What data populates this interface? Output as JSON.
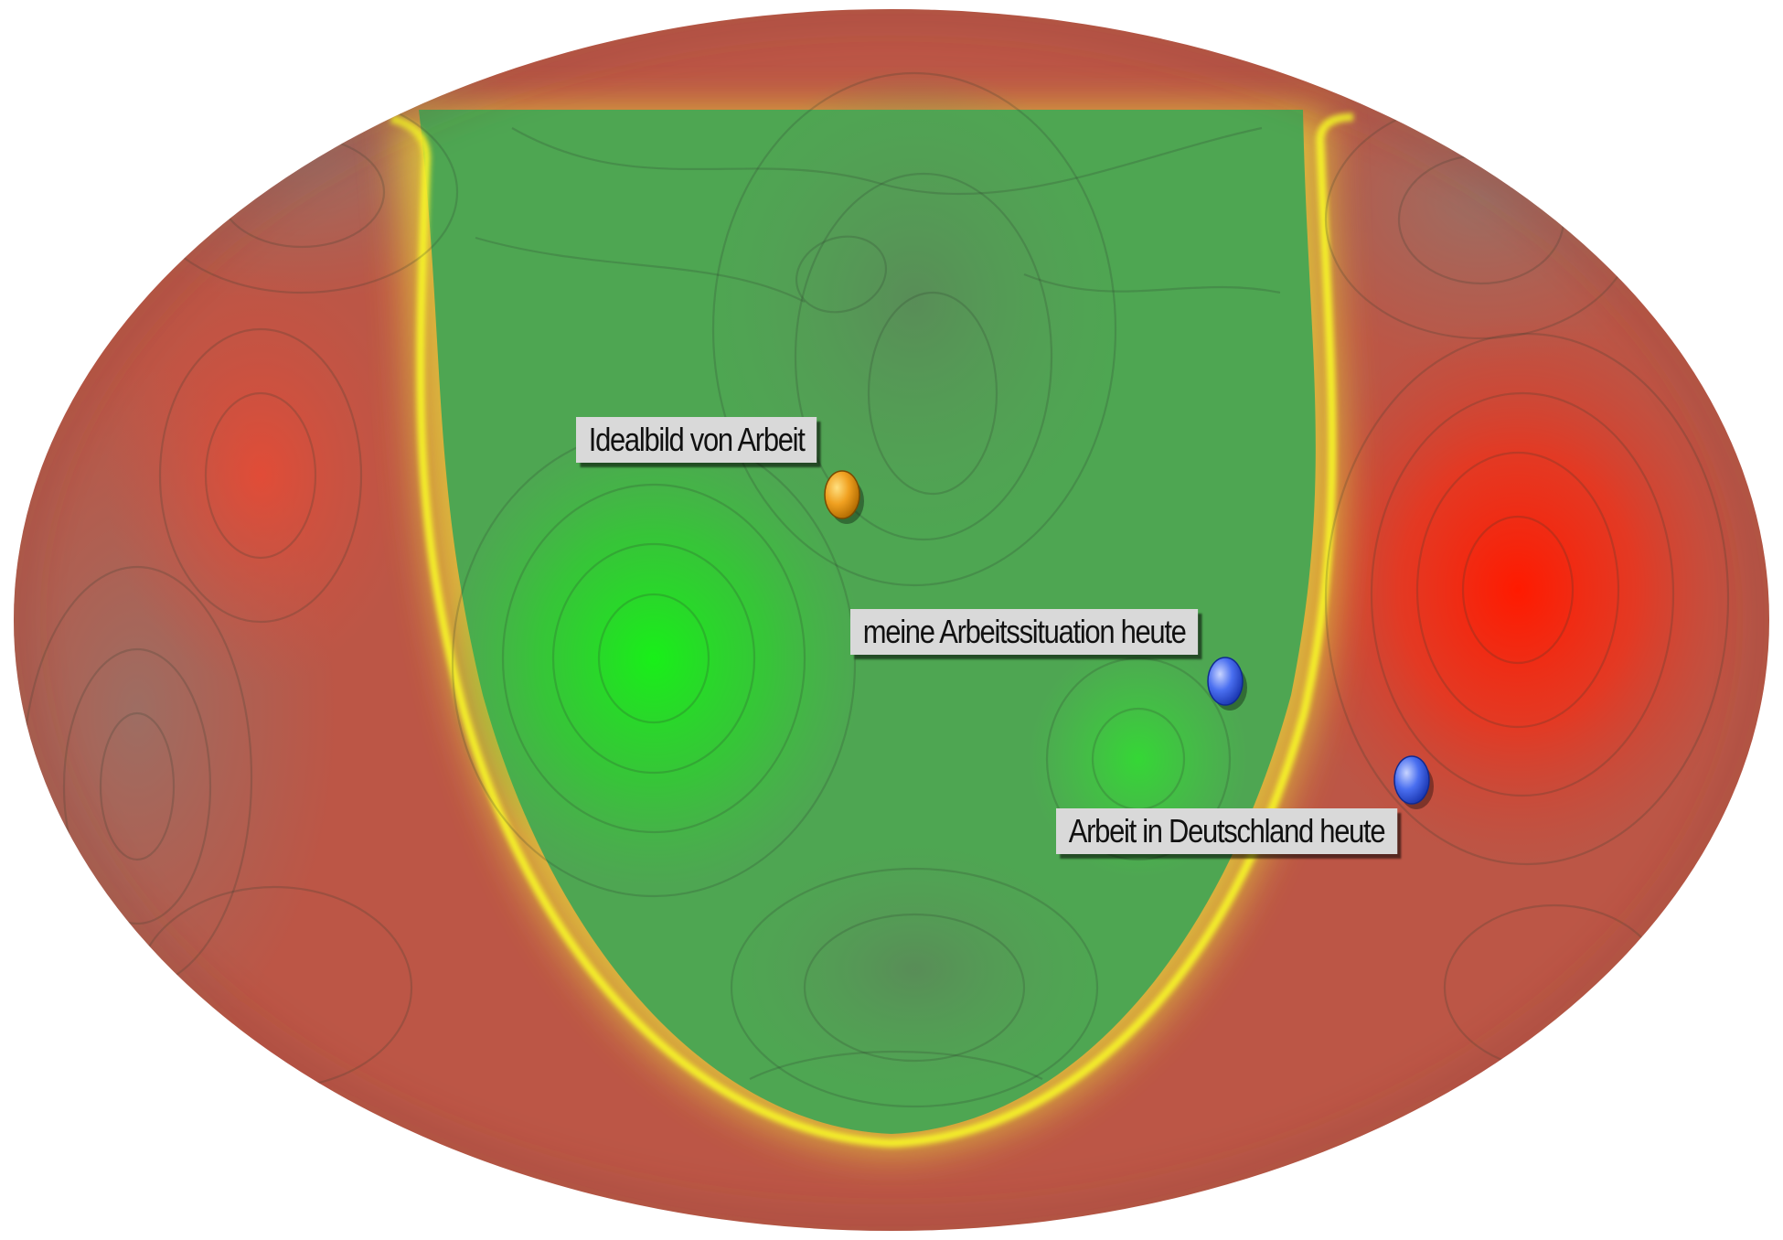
{
  "map": {
    "markers": [
      {
        "id": "ideal",
        "label": "Idealbild von Arbeit",
        "color": "#f0a020"
      },
      {
        "id": "meine",
        "label": "meine Arbeitssituation heute",
        "color": "#4a6ff0"
      },
      {
        "id": "deutschland",
        "label": "Arbeit in Deutschland heute",
        "color": "#4a6ff0"
      }
    ],
    "colors": {
      "good_zone": "#1ee61e",
      "neutral_zone": "#4fa150",
      "boundary": "#f5f02a",
      "bad_zone": "#ff2a10",
      "bad_muted": "#b85a48"
    }
  }
}
